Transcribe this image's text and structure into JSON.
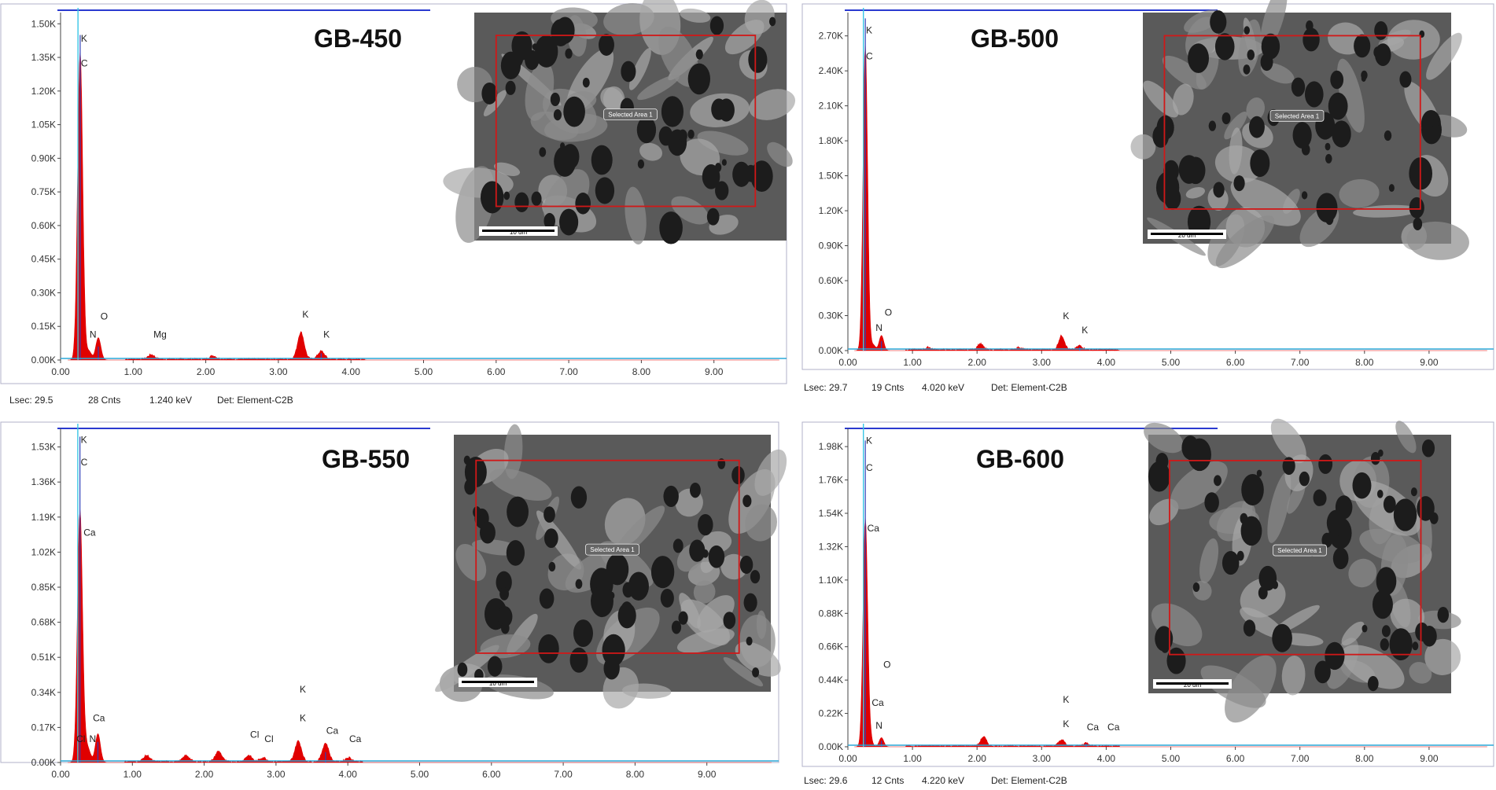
{
  "colors": {
    "frame": "#2a3ad0",
    "spectrum": "#e00000",
    "baseline": "#2aa8d8",
    "zero_line": "#39c6e6",
    "sem_box": "#d01818",
    "blue_peak": "#3040b8"
  },
  "chart_data": [
    {
      "type": "area",
      "title": "GB-450",
      "xlabel": "",
      "ylabel": "",
      "xlim": [
        0,
        10
      ],
      "ylim": [
        0,
        1.55
      ],
      "y_unit": "K",
      "x_ticks": [
        "0.00",
        "1.00",
        "2.00",
        "3.00",
        "4.00",
        "5.00",
        "6.00",
        "7.00",
        "8.00",
        "9.00"
      ],
      "y_ticks": [
        "0.00K",
        "0.15K",
        "0.30K",
        "0.45K",
        "0.60K",
        "0.75K",
        "0.90K",
        "1.05K",
        "1.20K",
        "1.35K",
        "1.50K"
      ],
      "peak_labels": [
        {
          "text": "K",
          "x": 0.28,
          "y": 1.42
        },
        {
          "text": "C",
          "x": 0.28,
          "y": 1.31
        },
        {
          "text": "O",
          "x": 0.55,
          "y": 0.18
        },
        {
          "text": "N",
          "x": 0.4,
          "y": 0.1
        },
        {
          "text": "Mg",
          "x": 1.28,
          "y": 0.1
        },
        {
          "text": "K",
          "x": 3.33,
          "y": 0.19
        },
        {
          "text": "K",
          "x": 3.62,
          "y": 0.1
        }
      ],
      "peaks": [
        [
          0.27,
          1.38
        ],
        [
          0.39,
          0.04
        ],
        [
          0.52,
          0.1
        ],
        [
          1.25,
          0.02
        ],
        [
          2.1,
          0.015
        ],
        [
          3.31,
          0.12
        ],
        [
          3.59,
          0.035
        ]
      ],
      "blue_peaks": [
        [
          0.27,
          1.45
        ],
        [
          0.52,
          0.06
        ],
        [
          3.59,
          0.03
        ]
      ],
      "sem_label": "Selected Area 1",
      "scale_bar": "10 um",
      "status": {
        "lsec": "Lsec: 29.5",
        "cnts": "28 Cnts",
        "kev": "1.240 keV",
        "det": "Det: Element-C2B"
      }
    },
    {
      "type": "area",
      "title": "GB-500",
      "xlabel": "",
      "ylabel": "",
      "xlim": [
        0,
        10
      ],
      "ylim": [
        0,
        2.9
      ],
      "y_unit": "K",
      "x_ticks": [
        "0.00",
        "1.00",
        "2.00",
        "3.00",
        "4.00",
        "5.00",
        "6.00",
        "7.00",
        "8.00",
        "9.00"
      ],
      "y_ticks": [
        "0.00K",
        "0.30K",
        "0.60K",
        "0.90K",
        "1.20K",
        "1.50K",
        "1.80K",
        "2.10K",
        "2.40K",
        "2.70K"
      ],
      "peak_labels": [
        {
          "text": "K",
          "x": 0.28,
          "y": 2.72
        },
        {
          "text": "C",
          "x": 0.28,
          "y": 2.5
        },
        {
          "text": "O",
          "x": 0.57,
          "y": 0.3
        },
        {
          "text": "N",
          "x": 0.43,
          "y": 0.17
        },
        {
          "text": "K",
          "x": 3.33,
          "y": 0.27
        },
        {
          "text": "K",
          "x": 3.62,
          "y": 0.15
        }
      ],
      "peaks": [
        [
          0.27,
          2.62
        ],
        [
          0.39,
          0.05
        ],
        [
          0.52,
          0.13
        ],
        [
          1.25,
          0.02
        ],
        [
          2.05,
          0.05
        ],
        [
          2.65,
          0.02
        ],
        [
          3.31,
          0.12
        ],
        [
          3.59,
          0.035
        ]
      ],
      "blue_peaks": [
        [
          0.27,
          2.85
        ],
        [
          0.52,
          0.08
        ],
        [
          3.59,
          0.03
        ]
      ],
      "sem_label": "Selected Area 1",
      "scale_bar": "20 um",
      "status": {
        "lsec": "Lsec: 29.7",
        "cnts": "19 Cnts",
        "kev": "4.020 keV",
        "det": "Det: Element-C2B"
      }
    },
    {
      "type": "area",
      "title": "GB-550",
      "xlabel": "",
      "ylabel": "",
      "xlim": [
        0,
        10
      ],
      "ylim": [
        0,
        1.62
      ],
      "y_unit": "K",
      "x_ticks": [
        "0.00",
        "1.00",
        "2.00",
        "3.00",
        "4.00",
        "5.00",
        "6.00",
        "7.00",
        "8.00",
        "9.00"
      ],
      "y_ticks": [
        "0.00K",
        "0.17K",
        "0.34K",
        "0.51K",
        "0.68K",
        "0.85K",
        "1.02K",
        "1.19K",
        "1.36K",
        "1.53K"
      ],
      "peak_labels": [
        {
          "text": "K",
          "x": 0.28,
          "y": 1.55
        },
        {
          "text": "C",
          "x": 0.28,
          "y": 1.44
        },
        {
          "text": "Ca",
          "x": 0.32,
          "y": 1.1
        },
        {
          "text": "Ca",
          "x": 0.45,
          "y": 0.2
        },
        {
          "text": "Cl",
          "x": 0.22,
          "y": 0.1
        },
        {
          "text": "N",
          "x": 0.4,
          "y": 0.1
        },
        {
          "text": "Cl",
          "x": 2.64,
          "y": 0.12
        },
        {
          "text": "Cl",
          "x": 2.84,
          "y": 0.1
        },
        {
          "text": "K",
          "x": 3.33,
          "y": 0.34
        },
        {
          "text": "K",
          "x": 3.33,
          "y": 0.2
        },
        {
          "text": "Ca",
          "x": 3.7,
          "y": 0.14
        },
        {
          "text": "Ca",
          "x": 4.02,
          "y": 0.1
        }
      ],
      "peaks": [
        [
          0.27,
          1.22
        ],
        [
          0.34,
          0.05
        ],
        [
          0.39,
          0.05
        ],
        [
          0.52,
          0.14
        ],
        [
          1.2,
          0.03
        ],
        [
          1.75,
          0.03
        ],
        [
          2.2,
          0.05
        ],
        [
          2.62,
          0.03
        ],
        [
          2.82,
          0.02
        ],
        [
          3.31,
          0.1
        ],
        [
          3.69,
          0.09
        ],
        [
          4.01,
          0.02
        ]
      ],
      "blue_peaks": [
        [
          0.27,
          1.58
        ],
        [
          0.52,
          0.1
        ],
        [
          3.69,
          0.05
        ]
      ],
      "sem_label": "Selected Area 1",
      "scale_bar": "10 um",
      "status": {
        "lsec": "",
        "cnts": "",
        "kev": "",
        "det": ""
      }
    },
    {
      "type": "area",
      "title": "GB-600",
      "xlabel": "",
      "ylabel": "",
      "xlim": [
        0,
        10
      ],
      "ylim": [
        0,
        2.1
      ],
      "y_unit": "K",
      "x_ticks": [
        "0.00",
        "1.00",
        "2.00",
        "3.00",
        "4.00",
        "5.00",
        "6.00",
        "7.00",
        "8.00",
        "9.00"
      ],
      "y_ticks": [
        "0.00K",
        "0.22K",
        "0.44K",
        "0.66K",
        "0.88K",
        "1.10K",
        "1.32K",
        "1.54K",
        "1.76K",
        "1.98K"
      ],
      "peak_labels": [
        {
          "text": "K",
          "x": 0.28,
          "y": 2.0
        },
        {
          "text": "C",
          "x": 0.28,
          "y": 1.82
        },
        {
          "text": "Ca",
          "x": 0.3,
          "y": 1.42
        },
        {
          "text": "O",
          "x": 0.55,
          "y": 0.52
        },
        {
          "text": "Ca",
          "x": 0.37,
          "y": 0.27
        },
        {
          "text": "N",
          "x": 0.43,
          "y": 0.12
        },
        {
          "text": "K",
          "x": 3.33,
          "y": 0.29
        },
        {
          "text": "K",
          "x": 3.33,
          "y": 0.13
        },
        {
          "text": "Ca",
          "x": 3.7,
          "y": 0.11
        },
        {
          "text": "Ca",
          "x": 4.02,
          "y": 0.11
        }
      ],
      "peaks": [
        [
          0.27,
          1.5
        ],
        [
          0.34,
          0.06
        ],
        [
          0.52,
          0.06
        ],
        [
          2.1,
          0.06
        ],
        [
          3.31,
          0.04
        ],
        [
          3.69,
          0.02
        ]
      ],
      "blue_peaks": [
        [
          0.27,
          2.02
        ],
        [
          0.52,
          0.04
        ],
        [
          3.69,
          0.02
        ]
      ],
      "sem_label": "Selected Area 1",
      "scale_bar": "20 um",
      "status": {
        "lsec": "Lsec: 29.6",
        "cnts": "12 Cnts",
        "kev": "4.220 keV",
        "det": "Det: Element-C2B"
      }
    }
  ]
}
